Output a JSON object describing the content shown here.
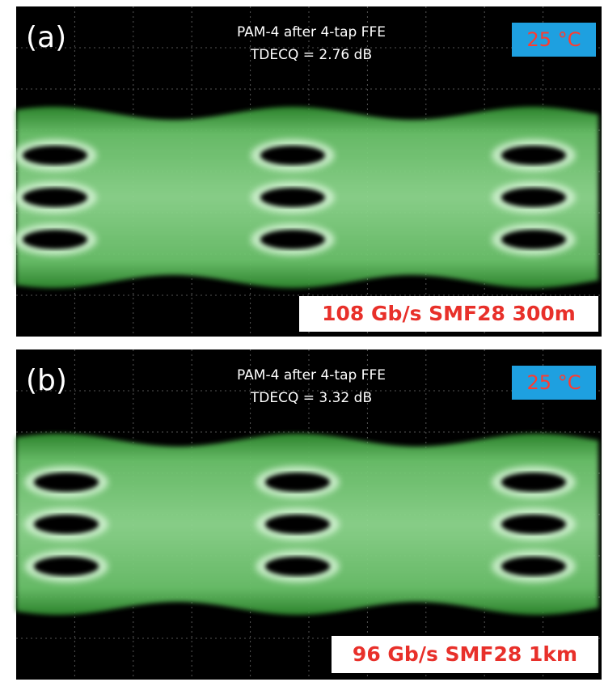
{
  "panels": [
    {
      "label": "(a)",
      "title": "PAM-4 after 4-tap FFE",
      "metric": "TDECQ = 2.76 dB",
      "temperature": "25 °C",
      "link": "108 Gb/s SMF28 300m"
    },
    {
      "label": "(b)",
      "title": "PAM-4 after 4-tap FFE",
      "metric": "TDECQ = 3.32 dB",
      "temperature": "25 °C",
      "link": "96 Gb/s SMF28 1km"
    }
  ]
}
